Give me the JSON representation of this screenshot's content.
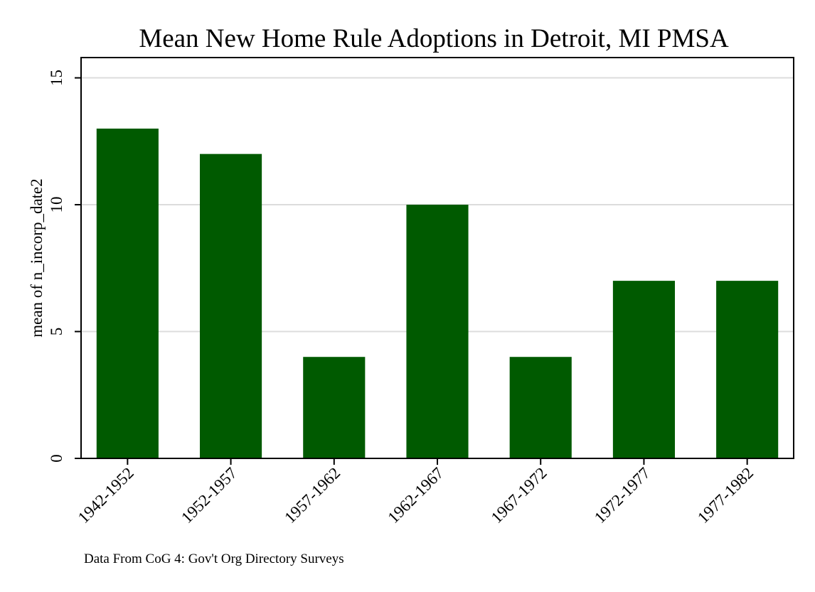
{
  "chart_data": {
    "type": "bar",
    "title": "Mean New Home Rule Adoptions in Detroit, MI PMSA",
    "ylabel": "mean of n_incorp_date2",
    "xlabel": "",
    "categories": [
      "1942-1952",
      "1952-1957",
      "1957-1962",
      "1962-1967",
      "1967-1972",
      "1972-1977",
      "1977-1982"
    ],
    "values": [
      13,
      12,
      4,
      10,
      4,
      7,
      7
    ],
    "ylim": [
      0,
      15.8
    ],
    "yticks": [
      0,
      5,
      10,
      15
    ],
    "grid": true,
    "bar_color": "#005a00",
    "note": "Data From CoG 4: Gov't Org Directory Surveys"
  }
}
